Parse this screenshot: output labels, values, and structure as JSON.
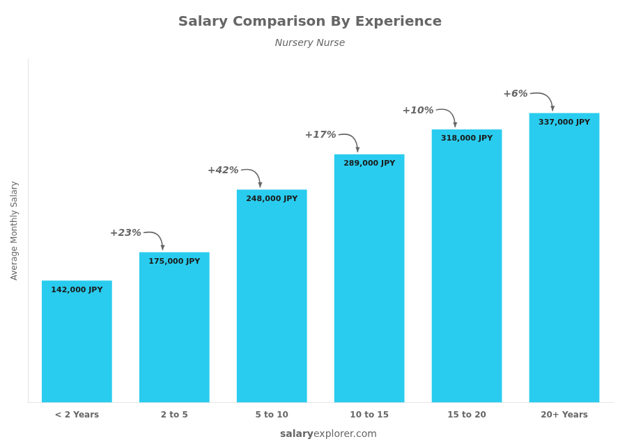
{
  "chart_data": {
    "type": "bar",
    "title": "Salary Comparison By Experience",
    "subtitle": "Nursery Nurse",
    "ylabel": "Average Monthly Salary",
    "categories": [
      "< 2 Years",
      "2 to 5",
      "5 to 10",
      "10 to 15",
      "15 to 20",
      "20+ Years"
    ],
    "values": [
      142000,
      175000,
      248000,
      289000,
      318000,
      337000
    ],
    "value_labels": [
      "142,000 JPY",
      "175,000 JPY",
      "248,000 JPY",
      "289,000 JPY",
      "318,000 JPY",
      "337,000 JPY"
    ],
    "data_labels": true,
    "color": "#29ccee",
    "ylim": [
      0,
      400000
    ],
    "tick_labels": "x",
    "grid": false,
    "annotations": [
      "+23%",
      "+42%",
      "+17%",
      "+10%",
      "+6%"
    ],
    "footer": [
      "salary",
      "explorer.com"
    ]
  }
}
